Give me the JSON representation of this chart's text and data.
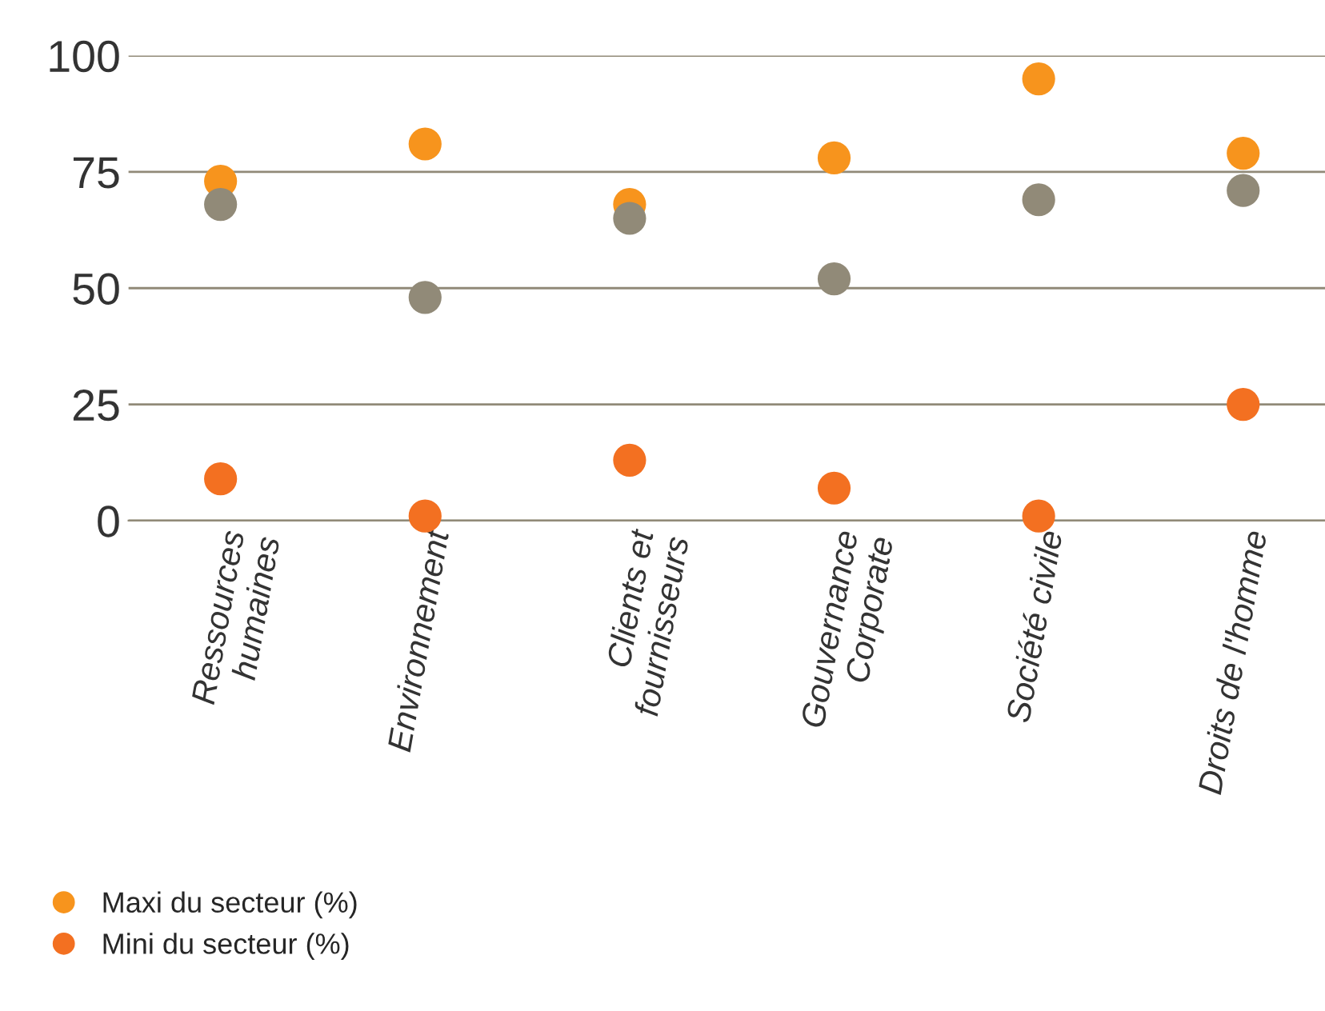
{
  "chart_data": {
    "type": "scatter",
    "categories": [
      "Ressources\nhumaines",
      "Environnement",
      "Clients et\nfournisseurs",
      "Gouvernance\nCorporate",
      "Société civile",
      "Droits de l'homme"
    ],
    "series": [
      {
        "name": "Maxi du secteur (%)",
        "color": "#f7941d",
        "values": [
          73,
          81,
          68,
          78,
          95,
          79
        ]
      },
      {
        "color": "#918a78",
        "values": [
          68,
          48,
          65,
          52,
          69,
          71
        ]
      },
      {
        "name": "Mini du secteur (%)",
        "color": "#f37021",
        "values": [
          9,
          1,
          13,
          7,
          1,
          25
        ]
      }
    ],
    "ylim": [
      0,
      100
    ],
    "yticks": [
      0,
      25,
      50,
      75,
      100
    ],
    "grid": "y",
    "legend": "bottom left",
    "marker": "circle"
  }
}
